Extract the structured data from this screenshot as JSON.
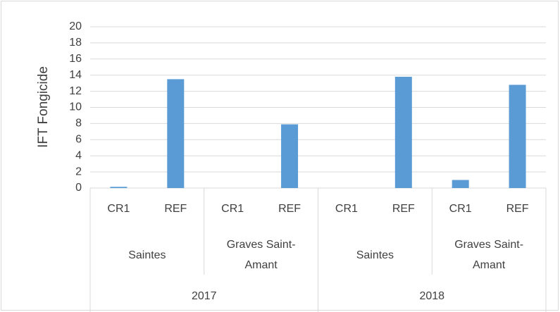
{
  "chart_data": {
    "type": "bar",
    "y_axis_label": "IFT Fongicide",
    "categories": [
      "CR1",
      "REF",
      "CR1",
      "REF",
      "CR1",
      "REF",
      "CR1",
      "REF"
    ],
    "groups": [
      "Saintes",
      "Graves Saint-Amant",
      "Saintes",
      "Graves Saint-Amant"
    ],
    "years": [
      "2017",
      "2018"
    ],
    "values": [
      0.15,
      13.5,
      0,
      7.9,
      0,
      13.8,
      1,
      12.8
    ],
    "color": "#5b9bd5",
    "ylim": [
      0,
      20
    ],
    "yticks": [
      0,
      2,
      4,
      6,
      8,
      10,
      12,
      14,
      16,
      18,
      20
    ],
    "grid": true
  }
}
